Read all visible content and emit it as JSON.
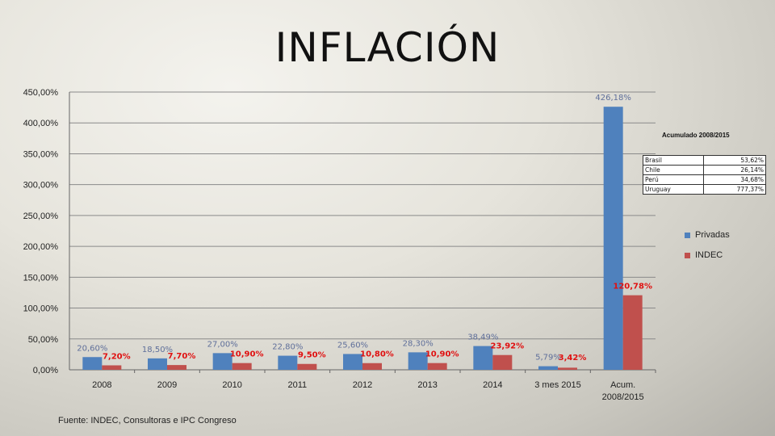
{
  "title": "INFLACIÓN",
  "source": "Fuente: INDEC,  Consultoras e IPC Congreso",
  "chart_data": {
    "type": "bar",
    "categories": [
      "2008",
      "2009",
      "2010",
      "2011",
      "2012",
      "2013",
      "2014",
      "3 mes 2015",
      "Acum. 2008/2015"
    ],
    "series": [
      {
        "name": "Privadas",
        "color": "#4f81bd",
        "values": [
          20.6,
          18.5,
          27.0,
          22.8,
          25.6,
          28.3,
          38.49,
          5.79,
          426.18
        ],
        "labels": [
          "20,60%",
          "18,50%",
          "27,00%",
          "22,80%",
          "25,60%",
          "28,30%",
          "38,49%",
          "5,79%",
          "426,18%"
        ]
      },
      {
        "name": "INDEC",
        "color": "#c0504d",
        "values": [
          7.2,
          7.7,
          10.9,
          9.5,
          10.8,
          10.9,
          23.92,
          3.42,
          120.78
        ],
        "labels": [
          "7,20%",
          "7,70%",
          "10,90%",
          "9,50%",
          "10,80%",
          "10,90%",
          "23,92%",
          "3,42%",
          "120,78%"
        ]
      }
    ],
    "ylim": [
      0,
      450
    ],
    "yticks": [
      0,
      50,
      100,
      150,
      200,
      250,
      300,
      350,
      400,
      450
    ],
    "ytick_labels": [
      "0,00%",
      "50,00%",
      "100,00%",
      "150,00%",
      "200,00%",
      "250,00%",
      "300,00%",
      "350,00%",
      "400,00%",
      "450,00%"
    ],
    "grid": true,
    "legend_position": "right"
  },
  "inset_table": {
    "title": "Acumulado 2008/2015",
    "rows": [
      {
        "country": "Brasil",
        "value": "53,62%"
      },
      {
        "country": "Chile",
        "value": "26,14%"
      },
      {
        "country": "Perú",
        "value": "34,68%"
      },
      {
        "country": "Uruguay",
        "value": "777,37%"
      }
    ]
  }
}
